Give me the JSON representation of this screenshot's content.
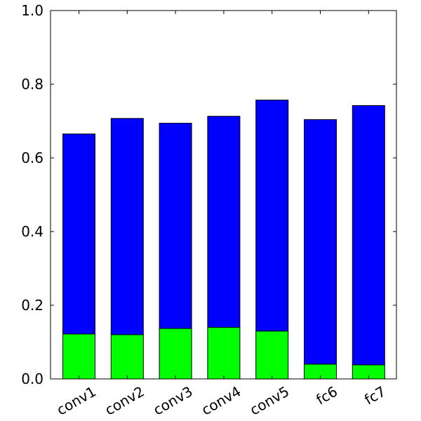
{
  "chart_data": {
    "type": "bar",
    "stacked": true,
    "categories": [
      "conv1",
      "conv2",
      "conv3",
      "conv4",
      "conv5",
      "fc6",
      "fc7"
    ],
    "series": [
      {
        "values": [
          0.122,
          0.12,
          0.137,
          0.14,
          0.13,
          0.04,
          0.038
        ],
        "color": "#00ff00"
      },
      {
        "values": [
          0.543,
          0.587,
          0.557,
          0.573,
          0.627,
          0.664,
          0.704
        ],
        "color": "#0000ff"
      }
    ],
    "totals": [
      0.665,
      0.707,
      0.694,
      0.713,
      0.757,
      0.704,
      0.742
    ],
    "ylim": [
      0.0,
      1.0
    ],
    "yticks": [
      "0.0",
      "0.2",
      "0.4",
      "0.6",
      "0.8",
      "1.0"
    ],
    "xlabel": "",
    "ylabel": "",
    "title": "",
    "grid": false
  }
}
